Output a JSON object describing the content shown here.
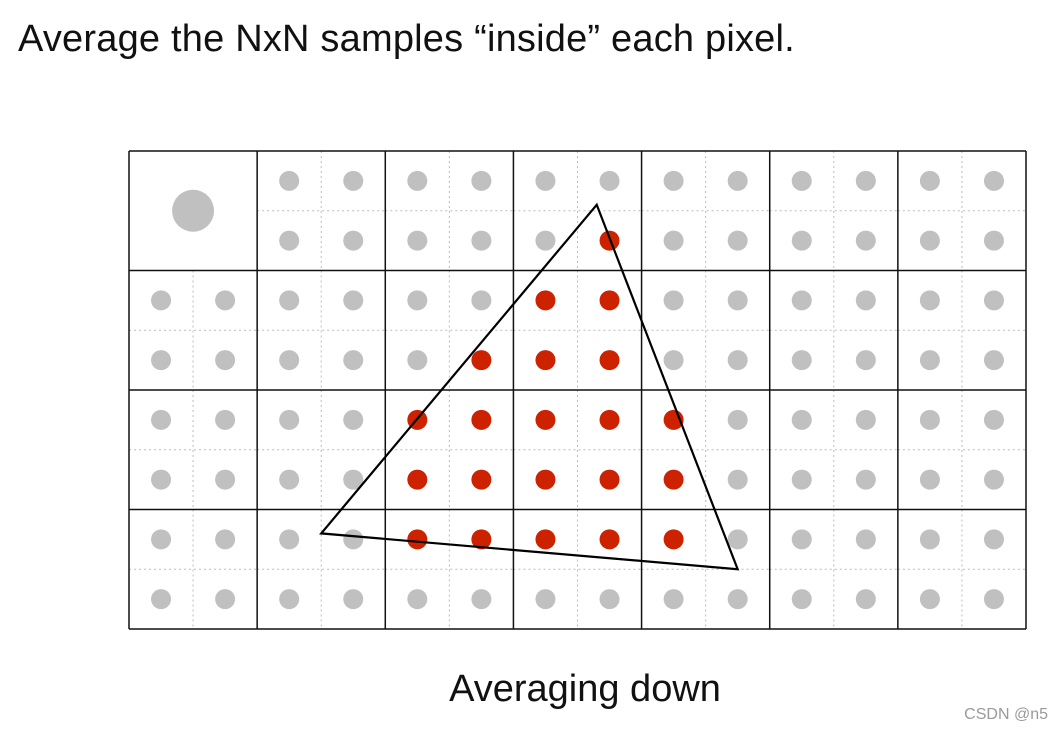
{
  "heading": "Average the NxN samples “inside” each pixel.",
  "caption": "Averaging down",
  "watermark": "CSDN @n5",
  "grid": {
    "pixel_columns": 7,
    "pixel_rows": 4,
    "samples_per_pixel_side": 2,
    "averaged_pixel": {
      "row": 0,
      "col": 0
    }
  },
  "triangle_vertices_in_samples": [
    [
      7.3,
      0.9
    ],
    [
      3.0,
      6.4
    ],
    [
      9.5,
      7.0
    ]
  ],
  "colors": {
    "sample_outside": "#c0c0c0",
    "sample_inside": "#cc2200",
    "averaged_pixel_dot": "#c0c0c0",
    "pixel_grid_line": "#111111",
    "subsample_grid_line": "#bbbbbb",
    "triangle_edge": "#000000",
    "text": "#111111",
    "watermark": "#9a9a9a"
  }
}
